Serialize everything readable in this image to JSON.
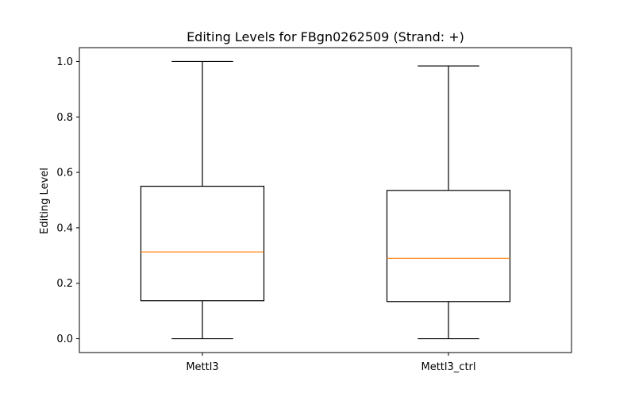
{
  "chart_data": {
    "type": "boxplot",
    "title": "Editing Levels for FBgn0262509 (Strand: +)",
    "xlabel": "",
    "ylabel": "Editing Level",
    "categories": [
      "Mettl3",
      "Mettl3_ctrl"
    ],
    "boxes": [
      {
        "name": "Mettl3",
        "whisker_low": 0.0,
        "q1": 0.137,
        "median": 0.313,
        "q3": 0.55,
        "whisker_high": 1.0
      },
      {
        "name": "Mettl3_ctrl",
        "whisker_low": 0.0,
        "q1": 0.134,
        "median": 0.29,
        "q3": 0.535,
        "whisker_high": 0.984
      }
    ],
    "ylim": [
      -0.05,
      1.05
    ],
    "yticks": [
      0.0,
      0.2,
      0.4,
      0.6,
      0.8,
      1.0
    ],
    "ytick_labels": [
      "0.0",
      "0.2",
      "0.4",
      "0.6",
      "0.8",
      "1.0"
    ],
    "grid": false,
    "colors": {
      "box": "#000000",
      "median": "#ff7f0e",
      "whisker": "#000000"
    }
  }
}
